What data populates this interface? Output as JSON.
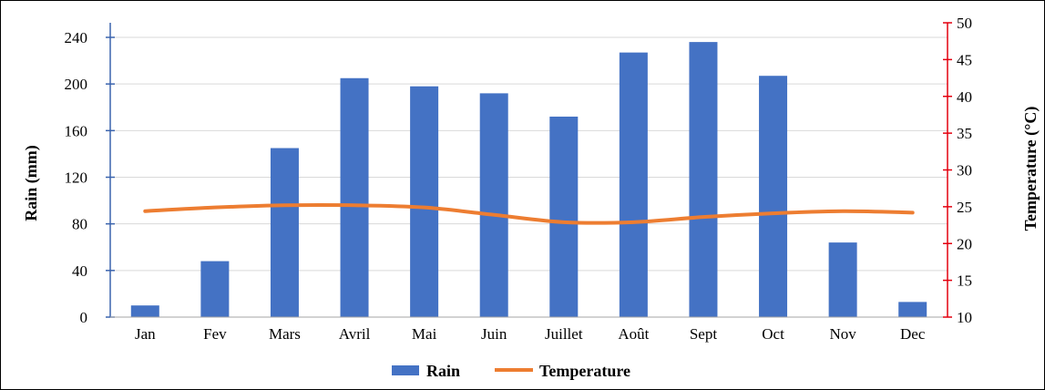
{
  "chart_data": {
    "type": "bar",
    "categories": [
      "Jan",
      "Fev",
      "Mars",
      "Avril",
      "Mai",
      "Juin",
      "Juillet",
      "Août",
      "Sept",
      "Oct",
      "Nov",
      "Dec"
    ],
    "series": [
      {
        "name": "Rain",
        "type": "bar",
        "axis": "left",
        "color": "#4472C4",
        "values": [
          10,
          48,
          145,
          205,
          198,
          192,
          172,
          227,
          236,
          207,
          64,
          13
        ]
      },
      {
        "name": "Temperature",
        "type": "line",
        "axis": "right",
        "color": "#ED7D31",
        "values": [
          24.4,
          24.9,
          25.2,
          25.2,
          24.9,
          23.9,
          22.9,
          22.9,
          23.6,
          24.1,
          24.4,
          24.2
        ]
      }
    ],
    "ylabel": "Rain (mm)",
    "ylim": [
      0,
      240
    ],
    "yticks": [
      "0",
      "40",
      "80",
      "120",
      "160",
      "200",
      "240"
    ],
    "y2label": "Temperature (°C)",
    "y2lim": [
      10,
      50
    ],
    "y2ticks": [
      "10",
      "15",
      "20",
      "25",
      "30",
      "35",
      "40",
      "45",
      "50"
    ],
    "y2_axis_color": "#E3000F",
    "grid": "horizontal",
    "legend": "bottom"
  },
  "legend": {
    "rain_label": "Rain",
    "temperature_label": "Temperature"
  }
}
